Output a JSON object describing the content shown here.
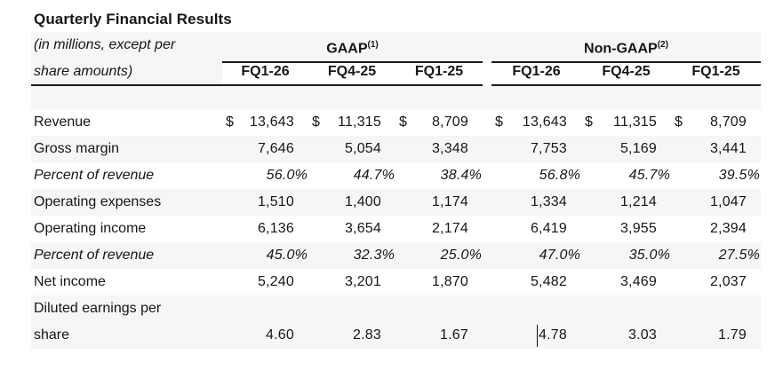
{
  "title": "Quarterly Financial Results",
  "units_note": {
    "line1": "(in millions, except per",
    "line2": "share amounts)"
  },
  "currency_symbol": "$",
  "groups": [
    {
      "label": "GAAP",
      "sup": "(1)",
      "columns": [
        "FQ1-26",
        "FQ4-25",
        "FQ1-25"
      ]
    },
    {
      "label": "Non-GAAP",
      "sup": "(2)",
      "columns": [
        "FQ1-26",
        "FQ4-25",
        "FQ1-25"
      ]
    }
  ],
  "rows": [
    {
      "label": "Revenue",
      "currency": true,
      "gaap": [
        "13,643",
        "11,315",
        "8,709"
      ],
      "non_gaap": [
        "13,643",
        "11,315",
        "8,709"
      ]
    },
    {
      "label": "Gross margin",
      "gaap": [
        "7,646",
        "5,054",
        "3,348"
      ],
      "non_gaap": [
        "7,753",
        "5,169",
        "3,441"
      ]
    },
    {
      "label": "Percent of revenue",
      "italic": true,
      "gaap": [
        "56.0%",
        "44.7%",
        "38.4%"
      ],
      "non_gaap": [
        "56.8%",
        "45.7%",
        "39.5%"
      ]
    },
    {
      "label": "Operating expenses",
      "gaap": [
        "1,510",
        "1,400",
        "1,174"
      ],
      "non_gaap": [
        "1,334",
        "1,214",
        "1,047"
      ]
    },
    {
      "label": "Operating income",
      "gaap": [
        "6,136",
        "3,654",
        "2,174"
      ],
      "non_gaap": [
        "6,419",
        "3,955",
        "2,394"
      ]
    },
    {
      "label": "Percent of revenue",
      "italic": true,
      "gaap": [
        "45.0%",
        "32.3%",
        "25.0%"
      ],
      "non_gaap": [
        "47.0%",
        "35.0%",
        "27.5%"
      ]
    },
    {
      "label": "Net income",
      "gaap": [
        "5,240",
        "3,201",
        "1,870"
      ],
      "non_gaap": [
        "5,482",
        "3,469",
        "2,037"
      ]
    },
    {
      "label": "Diluted earnings per share",
      "two_line_label": true,
      "gaap": [
        "4.60",
        "2.83",
        "1.67"
      ],
      "non_gaap": [
        "4.78",
        "3.03",
        "1.79"
      ]
    }
  ],
  "text_cursor": {
    "present": true,
    "row": "Diluted earnings per share",
    "column": "Non-GAAP FQ1-26",
    "before_value": "4.78"
  },
  "colors": {
    "text": "#161616",
    "row_stripe": "#f6f6f6",
    "rule": "#1a1a1a",
    "background": "#ffffff"
  }
}
